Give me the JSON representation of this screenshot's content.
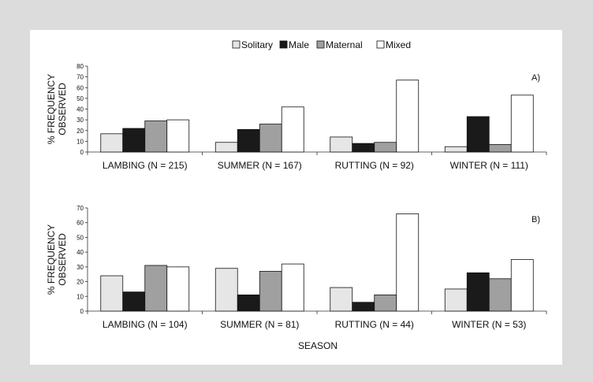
{
  "legend": [
    "Solitary",
    "Male",
    "Maternal",
    "Mixed"
  ],
  "colors": {
    "Solitary": "#e6e6e6",
    "Male": "#1a1a1a",
    "Maternal": "#a0a0a0",
    "Mixed": "#ffffff",
    "background": "#dcdcdc",
    "panel": "#ffffff"
  },
  "chart_data": [
    {
      "type": "bar",
      "panel_label": "A)",
      "ylabel_lines": [
        "% FREQUENCY",
        "OBSERVED"
      ],
      "ylim": [
        0,
        80
      ],
      "yticks": [
        "0",
        "10",
        "20",
        "30",
        "40",
        "50",
        "60",
        "70",
        "80"
      ],
      "categories": [
        "LAMBING (N = 215)",
        "SUMMER (N = 167)",
        "RUTTING (N = 92)",
        "WINTER (N = 111)"
      ],
      "series": [
        {
          "name": "Solitary",
          "values": [
            17,
            9,
            14,
            5
          ]
        },
        {
          "name": "Male",
          "values": [
            22,
            21,
            8,
            33
          ]
        },
        {
          "name": "Maternal",
          "values": [
            29,
            26,
            9,
            7
          ]
        },
        {
          "name": "Mixed",
          "values": [
            30,
            42,
            67,
            53
          ]
        }
      ]
    },
    {
      "type": "bar",
      "panel_label": "B)",
      "ylabel_lines": [
        "% FREQUENCY",
        "OBSERVED"
      ],
      "xlabel": "SEASON",
      "ylim": [
        0,
        70
      ],
      "yticks": [
        "0",
        "10",
        "20",
        "30",
        "40",
        "50",
        "60",
        "70"
      ],
      "categories": [
        "LAMBING (N = 104)",
        "SUMMER (N = 81)",
        "RUTTING (N = 44)",
        "WINTER (N = 53)"
      ],
      "series": [
        {
          "name": "Solitary",
          "values": [
            24,
            29,
            16,
            15
          ]
        },
        {
          "name": "Male",
          "values": [
            13,
            11,
            6,
            26
          ]
        },
        {
          "name": "Maternal",
          "values": [
            31,
            27,
            11,
            22
          ]
        },
        {
          "name": "Mixed",
          "values": [
            30,
            32,
            66,
            35
          ]
        }
      ]
    }
  ]
}
